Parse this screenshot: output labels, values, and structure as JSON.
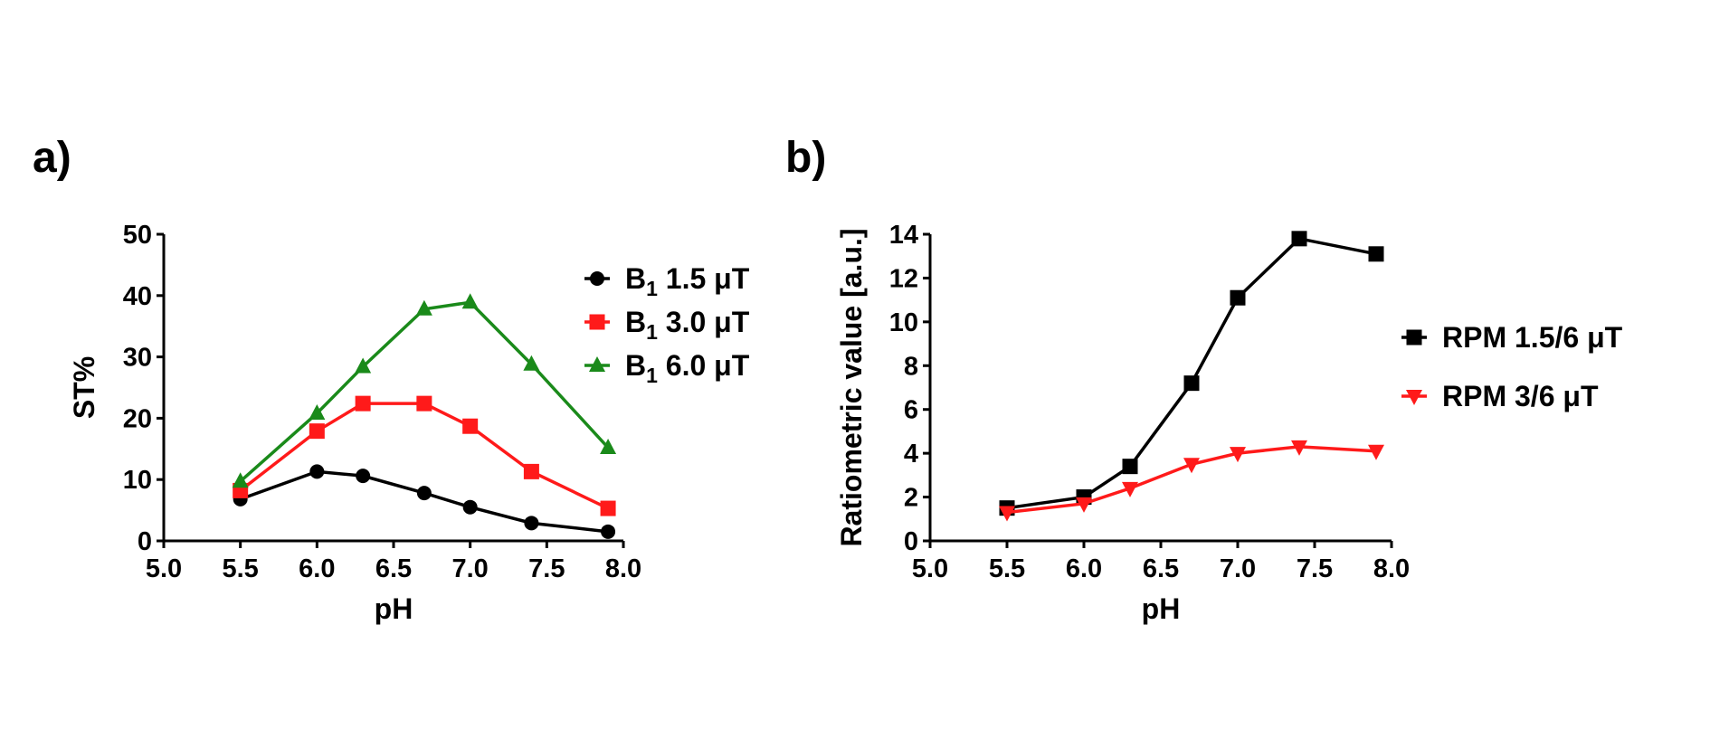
{
  "figure": {
    "panel_labels": [
      "a)",
      "b)"
    ]
  },
  "chart_data": [
    {
      "panel": "a)",
      "type": "line",
      "xlabel": "pH",
      "ylabel": "ST%",
      "xlim": [
        5.0,
        8.0
      ],
      "ylim": [
        0,
        50
      ],
      "xticks": [
        "5.0",
        "5.5",
        "6.0",
        "6.5",
        "7.0",
        "7.5",
        "8.0"
      ],
      "yticks": [
        "0",
        "10",
        "20",
        "30",
        "40",
        "50"
      ],
      "grid": false,
      "legend_position": "right",
      "series": [
        {
          "name": "B1 1.5 μT",
          "label_main": "B",
          "label_sub": "1",
          "label_rest": " 1.5 μT",
          "color": "#000000",
          "marker": "circle",
          "x": [
            5.5,
            6.0,
            6.3,
            6.7,
            7.0,
            7.4,
            7.9
          ],
          "y": [
            6.8,
            11.3,
            10.6,
            7.8,
            5.5,
            2.9,
            1.5
          ]
        },
        {
          "name": "B1 3.0 μT",
          "label_main": "B",
          "label_sub": "1",
          "label_rest": " 3.0 μT",
          "color": "#ff1a1a",
          "marker": "square",
          "x": [
            5.5,
            6.0,
            6.3,
            6.7,
            7.0,
            7.4,
            7.9
          ],
          "y": [
            8.2,
            17.9,
            22.4,
            22.4,
            18.7,
            11.3,
            5.3
          ]
        },
        {
          "name": "B1 6.0 μT",
          "label_main": "B",
          "label_sub": "1",
          "label_rest": " 6.0 μT",
          "color": "#1a8a1a",
          "marker": "triangle-up",
          "x": [
            5.5,
            6.0,
            6.3,
            6.7,
            7.0,
            7.4,
            7.9
          ],
          "y": [
            9.7,
            20.8,
            28.4,
            37.8,
            38.9,
            28.8,
            15.2
          ]
        }
      ]
    },
    {
      "panel": "b)",
      "type": "line",
      "xlabel": "pH",
      "ylabel": "Ratiometric value [a.u.]",
      "xlim": [
        5.0,
        8.0
      ],
      "ylim": [
        0,
        14
      ],
      "xticks": [
        "5.0",
        "5.5",
        "6.0",
        "6.5",
        "7.0",
        "7.5",
        "8.0"
      ],
      "yticks": [
        "0",
        "2",
        "4",
        "6",
        "8",
        "10",
        "12",
        "14"
      ],
      "grid": false,
      "legend_position": "right",
      "series": [
        {
          "name": "RPM 1.5/6 μT",
          "label_main": "RPM 1.5/6 μT",
          "label_sub": "",
          "label_rest": "",
          "color": "#000000",
          "marker": "square",
          "x": [
            5.5,
            6.0,
            6.3,
            6.7,
            7.0,
            7.4,
            7.9
          ],
          "y": [
            1.5,
            2.0,
            3.4,
            7.2,
            11.1,
            13.8,
            13.1
          ]
        },
        {
          "name": "RPM 3/6 μT",
          "label_main": "RPM 3/6 μT",
          "label_sub": "",
          "label_rest": "",
          "color": "#ff1a1a",
          "marker": "triangle-down",
          "x": [
            5.5,
            6.0,
            6.3,
            6.7,
            7.0,
            7.4,
            7.9
          ],
          "y": [
            1.3,
            1.7,
            2.4,
            3.5,
            4.0,
            4.3,
            4.1
          ]
        }
      ]
    }
  ]
}
